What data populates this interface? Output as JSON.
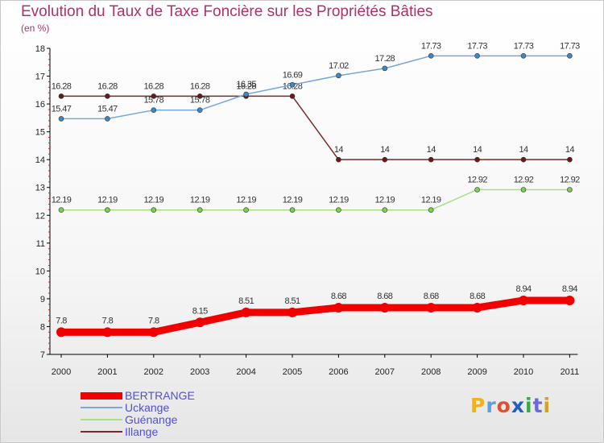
{
  "header": {
    "title": "Evolution du Taux de Taxe Foncière sur les Propriétés Bâties",
    "unit": "(en %)"
  },
  "logo": {
    "text": "Proxiti",
    "letters": [
      "P",
      "r",
      "o",
      "x",
      "i",
      "t",
      "i"
    ],
    "colors": [
      "#f0b020",
      "#5aa0e0",
      "#e05030",
      "#2060c0",
      "#3aa84a",
      "#6a6ad8",
      "#d8a020"
    ]
  },
  "chart_data": {
    "type": "line",
    "title": "Evolution du Taux de Taxe Foncière sur les Propriétés Bâties",
    "ylabel": "(en %)",
    "xlabel": "",
    "ylim": [
      7,
      18
    ],
    "yticks": [
      7,
      8,
      9,
      10,
      11,
      12,
      13,
      14,
      15,
      16,
      17,
      18
    ],
    "grid": false,
    "categories": [
      "2000",
      "2001",
      "2002",
      "2003",
      "2004",
      "2005",
      "2006",
      "2007",
      "2008",
      "2009",
      "2010",
      "2011"
    ],
    "series": [
      {
        "name": "Illange",
        "color": "#7a2a2a",
        "point_color": "#6a1818",
        "width": 1.5,
        "marker": 3,
        "values": [
          16.28,
          16.28,
          16.28,
          16.28,
          16.28,
          16.28,
          14,
          14,
          14,
          14,
          14,
          14
        ],
        "labels": [
          "16.28",
          "16.28",
          "16.28",
          "16.28",
          "16.28",
          "16.28",
          "14",
          "14",
          "14",
          "14",
          "14",
          "14"
        ]
      },
      {
        "name": "Uckange",
        "color": "#78a8d8",
        "point_color": "#3a88c8",
        "width": 1.5,
        "marker": 3,
        "values": [
          15.47,
          15.47,
          15.78,
          15.78,
          16.35,
          16.69,
          17.02,
          17.28,
          17.73,
          17.73,
          17.73,
          17.73
        ],
        "labels": [
          "15.47",
          "15.47",
          "15.78",
          "15.78",
          "16.35",
          "16.69",
          "17.02",
          "17.28",
          "17.73",
          "17.73",
          "17.73",
          "17.73"
        ]
      },
      {
        "name": "Guénange",
        "color": "#a8e088",
        "point_color": "#7ad050",
        "width": 1.5,
        "marker": 3,
        "values": [
          12.19,
          12.19,
          12.19,
          12.19,
          12.19,
          12.19,
          12.19,
          12.19,
          12.19,
          12.92,
          12.92,
          12.92
        ],
        "labels": [
          "12.19",
          "12.19",
          "12.19",
          "12.19",
          "12.19",
          "12.19",
          "12.19",
          "12.19",
          "12.19",
          "12.92",
          "12.92",
          "12.92"
        ]
      },
      {
        "name": "BERTRANGE",
        "color": "#f00000",
        "point_color": "#f00000",
        "width": 9,
        "marker": 6,
        "values": [
          7.8,
          7.8,
          7.8,
          8.15,
          8.51,
          8.51,
          8.68,
          8.68,
          8.68,
          8.68,
          8.94,
          8.94
        ],
        "labels": [
          "7.8",
          "7.8",
          "7.8",
          "8.15",
          "8.51",
          "8.51",
          "8.68",
          "8.68",
          "8.68",
          "8.68",
          "8.94",
          "8.94"
        ]
      }
    ],
    "legend": [
      {
        "name": "BERTRANGE",
        "color": "#f00000",
        "width": 9
      },
      {
        "name": "Uckange",
        "color": "#78a8d8",
        "width": 2
      },
      {
        "name": "Guénange",
        "color": "#a8e088",
        "width": 2
      },
      {
        "name": "Illange",
        "color": "#7a2a2a",
        "width": 2
      }
    ]
  }
}
